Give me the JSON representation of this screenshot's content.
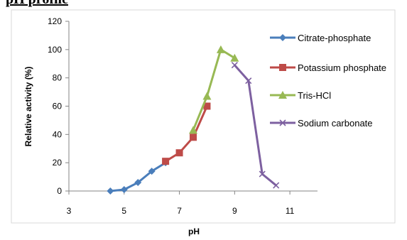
{
  "crop_title": "pH profile",
  "chart_data": {
    "type": "line",
    "title": "",
    "xlabel": "pH",
    "ylabel": "Relative activity (%)",
    "xlim": [
      3,
      12
    ],
    "ylim": [
      0,
      120
    ],
    "xticks": [
      3,
      5,
      7,
      9,
      11
    ],
    "yticks": [
      0,
      20,
      40,
      60,
      80,
      100,
      120
    ],
    "legend_position": "right",
    "grid": false,
    "series": [
      {
        "name": "Citrate-phosphate",
        "color": "#4A7EBB",
        "marker": "diamond",
        "x": [
          4.5,
          5,
          5.5,
          6,
          6.5
        ],
        "y": [
          0,
          1,
          6,
          14,
          20
        ]
      },
      {
        "name": "Potassium phosphate",
        "color": "#BE4B48",
        "marker": "square",
        "x": [
          6.5,
          7,
          7.5,
          8
        ],
        "y": [
          21,
          27,
          38,
          60
        ]
      },
      {
        "name": "Tris-HCl",
        "color": "#98B954",
        "marker": "triangle",
        "x": [
          7.5,
          8,
          8.5,
          9
        ],
        "y": [
          43,
          67,
          100,
          94
        ]
      },
      {
        "name": "Sodium carbonate",
        "color": "#7D60A0",
        "marker": "x",
        "x": [
          9,
          9.5,
          10,
          10.5
        ],
        "y": [
          89,
          78,
          12,
          4
        ]
      }
    ]
  }
}
